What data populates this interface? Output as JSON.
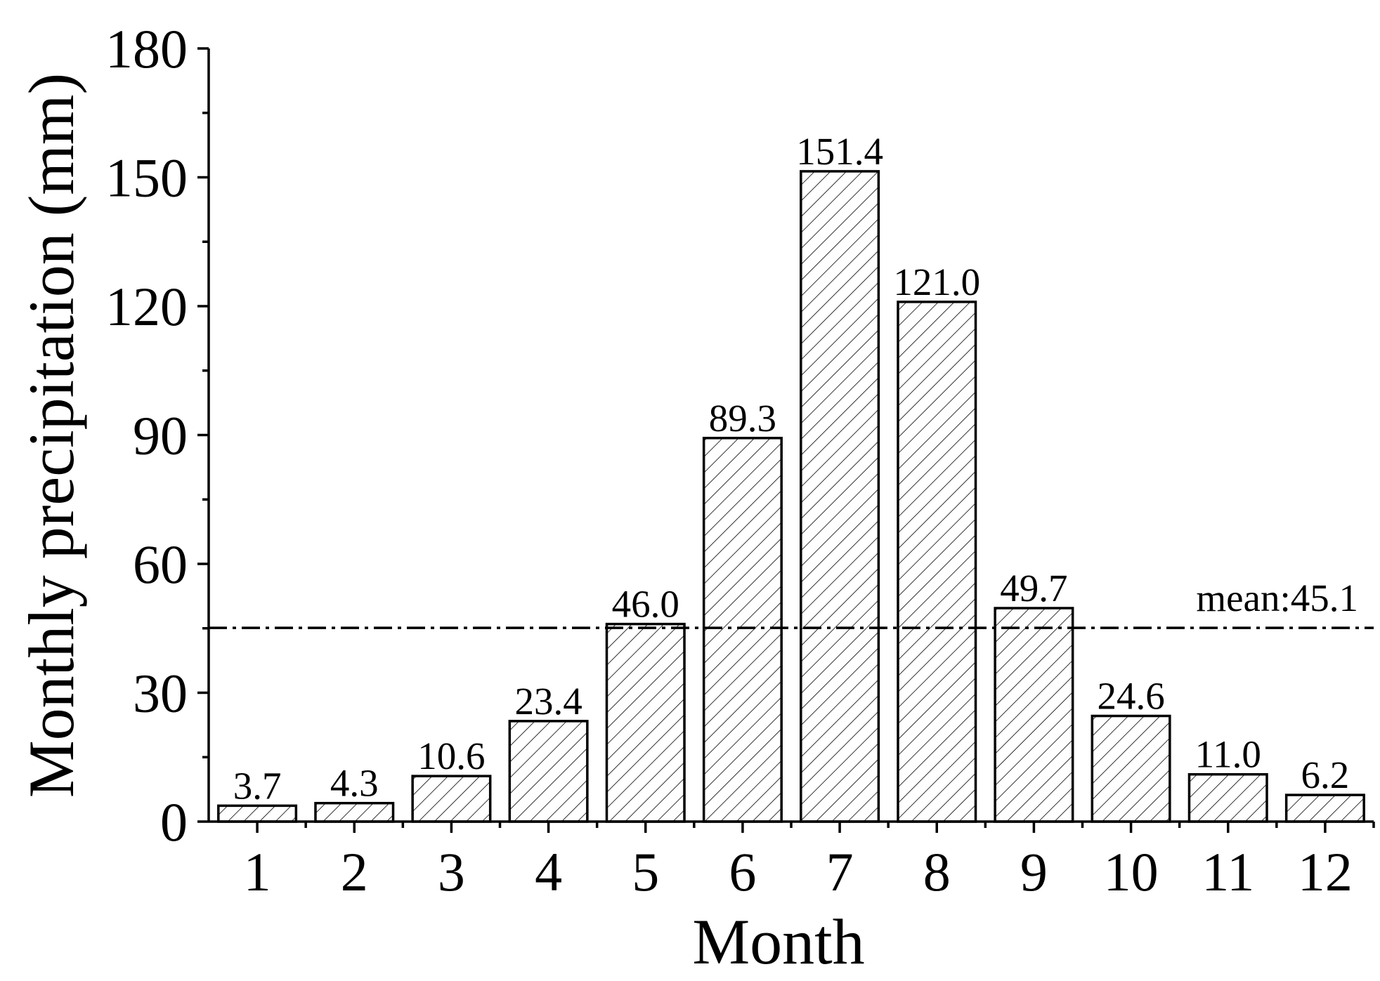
{
  "chart_data": {
    "type": "bar",
    "categories": [
      "1",
      "2",
      "3",
      "4",
      "5",
      "6",
      "7",
      "8",
      "9",
      "10",
      "11",
      "12"
    ],
    "values": [
      3.7,
      4.3,
      10.6,
      23.4,
      46.0,
      89.3,
      151.4,
      121.0,
      49.7,
      24.6,
      11.0,
      6.2
    ],
    "value_labels": [
      "3.7",
      "4.3",
      "10.6",
      "23.4",
      "46.0",
      "89.3",
      "151.4",
      "121.0",
      "49.7",
      "24.6",
      "11.0",
      "6.2"
    ],
    "title": "",
    "xlabel": "Month",
    "ylabel": "Monthly precipitation (mm)",
    "ylim": [
      0,
      180
    ],
    "yticks": [
      "0",
      "30",
      "60",
      "90",
      "120",
      "150",
      "180"
    ],
    "y_minor_step": 15,
    "grid": false,
    "bar_fill": "diagonal-hatch",
    "colors": {
      "bar_stroke": "#000000",
      "hatch": "#000000",
      "background": "#ffffff"
    },
    "reference_line": {
      "value": 45.1,
      "label": "mean:45.1",
      "style": "dash-dot"
    }
  }
}
